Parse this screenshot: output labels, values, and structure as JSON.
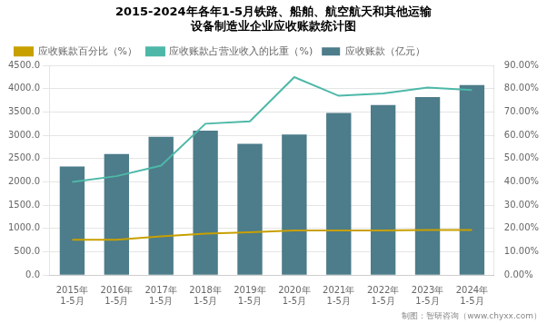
{
  "chart_data": {
    "type": "bar",
    "title": [
      "2015-2024年各年1-5月铁路、船舶、航空航天和其他运输",
      "设备制造业企业应收账款统计图"
    ],
    "annotations": [
      "制图：智研咨询（www.chyxx.com）"
    ],
    "categories": [
      "2015年\n1-5月",
      "2016年\n1-5月",
      "2017年\n1-5月",
      "2018年\n1-5月",
      "2019年\n1-5月",
      "2020年\n1-5月",
      "2021年\n1-5月",
      "2022年\n1-5月",
      "2023年\n1-5月",
      "2024年\n1-5月"
    ],
    "series": [
      {
        "name": "应收账款（亿元）",
        "type": "bar",
        "color": "#4d7c8a",
        "values": [
          2330,
          2600,
          2970,
          3100,
          2820,
          3020,
          3480,
          3650,
          3820,
          4080
        ]
      },
      {
        "name": "应收账款百分比（%）",
        "type": "line",
        "color": "#c8a000",
        "values": [
          760,
          760,
          830,
          890,
          920,
          960,
          960,
          960,
          970,
          970
        ]
      },
      {
        "name": "应收账款占营业收入的比重（%)",
        "type": "line",
        "color": "#4db8a8",
        "axis": "y2",
        "values": [
          40.0,
          42.5,
          47.0,
          65.0,
          66.0,
          85.0,
          77.0,
          78.0,
          80.5,
          79.5
        ]
      }
    ],
    "ylim": [
      0,
      4500
    ],
    "yticks": [
      {
        "value": 0,
        "label": "0.0"
      },
      {
        "value": 500,
        "label": "500.0"
      },
      {
        "value": 1000,
        "label": "1000.0"
      },
      {
        "value": 1500,
        "label": "1500.0"
      },
      {
        "value": 2000,
        "label": "2000.0"
      },
      {
        "value": 2500,
        "label": "2500.0"
      },
      {
        "value": 3000,
        "label": "3000.0"
      },
      {
        "value": 3500,
        "label": "3500.0"
      },
      {
        "value": 4000,
        "label": "4000.0"
      },
      {
        "value": 4500,
        "label": "4500.0"
      }
    ],
    "y2lim": [
      0,
      90
    ],
    "y2ticks": [
      {
        "value": 0,
        "label": "0.00%"
      },
      {
        "value": 10,
        "label": "10.00%"
      },
      {
        "value": 20,
        "label": "20.00%"
      },
      {
        "value": 30,
        "label": "30.00%"
      },
      {
        "value": 40,
        "label": "40.00%"
      },
      {
        "value": 50,
        "label": "50.00%"
      },
      {
        "value": 60,
        "label": "60.00%"
      },
      {
        "value": 70,
        "label": "70.00%"
      },
      {
        "value": 80,
        "label": "80.00%"
      },
      {
        "value": 90,
        "label": "90.00%"
      }
    ],
    "grid": true,
    "legend": "upper left"
  }
}
